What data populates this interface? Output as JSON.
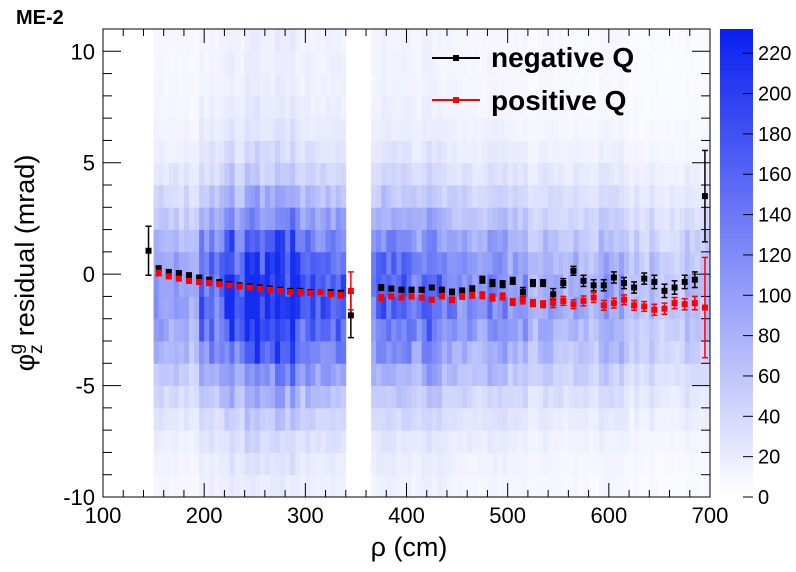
{
  "chart_data": {
    "type": "scatter",
    "title": "ME-2",
    "xlabel": "ρ (cm)",
    "ylabel_main": "φ",
    "ylabel_sup": "g",
    "ylabel_sub": "z",
    "ylabel_rest": " residual (mrad)",
    "xlim": [
      100,
      700
    ],
    "ylim": [
      -10,
      11
    ],
    "x_ticks": [
      100,
      200,
      300,
      400,
      500,
      600,
      700
    ],
    "x_tick_labels": [
      "100",
      "200",
      "300",
      "400",
      "500",
      "600",
      "700"
    ],
    "y_ticks": [
      -10,
      -5,
      0,
      5,
      10
    ],
    "y_tick_labels": [
      "-10",
      "-5",
      "0",
      "5",
      "10"
    ],
    "colorbar": {
      "range": [
        0,
        232
      ],
      "ticks": [
        0,
        20,
        40,
        60,
        80,
        100,
        120,
        140,
        160,
        180,
        200,
        220
      ],
      "tick_labels": [
        "0",
        "20",
        "40",
        "60",
        "80",
        "100",
        "120",
        "140",
        "160",
        "180",
        "200",
        "220"
      ]
    },
    "heatmap": {
      "description_free": true,
      "x_start": 150,
      "x_end": 700,
      "x_bin": 5,
      "y_start": -10,
      "y_end": 11,
      "y_bin": 1,
      "gap": [
        338,
        365
      ]
    },
    "legend": {
      "position": "top-right",
      "entries": [
        "negative Q",
        "positive Q"
      ]
    },
    "series": [
      {
        "name": "negative Q",
        "color": "#000000",
        "x": [
          145,
          155,
          165,
          175,
          185,
          195,
          205,
          215,
          225,
          235,
          245,
          255,
          265,
          275,
          285,
          295,
          305,
          315,
          325,
          335,
          345,
          375,
          385,
          395,
          405,
          415,
          425,
          435,
          445,
          455,
          465,
          475,
          485,
          495,
          505,
          515,
          525,
          535,
          545,
          555,
          565,
          575,
          585,
          595,
          605,
          615,
          625,
          635,
          645,
          655,
          665,
          675,
          685,
          695
        ],
        "y": [
          1.05,
          0.25,
          0.1,
          0.05,
          -0.05,
          -0.15,
          -0.25,
          -0.35,
          -0.45,
          -0.5,
          -0.55,
          -0.6,
          -0.65,
          -0.7,
          -0.75,
          -0.75,
          -0.8,
          -0.8,
          -0.8,
          -0.85,
          -1.85,
          -0.6,
          -0.65,
          -0.7,
          -0.7,
          -0.7,
          -0.6,
          -0.7,
          -0.8,
          -0.75,
          -0.65,
          -0.25,
          -0.4,
          -0.45,
          -0.3,
          -0.8,
          -0.4,
          -0.4,
          -0.9,
          -0.4,
          0.15,
          -0.3,
          -0.5,
          -0.5,
          -0.15,
          -0.4,
          -0.6,
          -0.2,
          -0.35,
          -0.75,
          -0.6,
          -0.35,
          -0.25,
          3.5
        ],
        "err": [
          1.1,
          0.12,
          0.1,
          0.1,
          0.1,
          0.1,
          0.1,
          0.08,
          0.08,
          0.08,
          0.08,
          0.08,
          0.08,
          0.08,
          0.08,
          0.08,
          0.08,
          0.08,
          0.1,
          0.12,
          1.0,
          0.12,
          0.1,
          0.1,
          0.1,
          0.1,
          0.1,
          0.1,
          0.12,
          0.12,
          0.12,
          0.15,
          0.15,
          0.15,
          0.15,
          0.2,
          0.15,
          0.15,
          0.25,
          0.2,
          0.2,
          0.25,
          0.25,
          0.25,
          0.25,
          0.25,
          0.25,
          0.25,
          0.3,
          0.3,
          0.3,
          0.3,
          0.35,
          2.05
        ]
      },
      {
        "name": "positive Q",
        "color": "#ff0000",
        "x": [
          155,
          165,
          175,
          185,
          195,
          205,
          215,
          225,
          235,
          245,
          255,
          265,
          275,
          285,
          295,
          305,
          315,
          325,
          335,
          345,
          375,
          385,
          395,
          405,
          415,
          425,
          435,
          445,
          455,
          465,
          475,
          485,
          495,
          505,
          515,
          525,
          535,
          545,
          555,
          565,
          575,
          585,
          595,
          605,
          615,
          625,
          635,
          645,
          655,
          665,
          675,
          685,
          695
        ],
        "y": [
          0.05,
          -0.1,
          -0.2,
          -0.3,
          -0.35,
          -0.4,
          -0.45,
          -0.5,
          -0.55,
          -0.6,
          -0.65,
          -0.7,
          -0.75,
          -0.8,
          -0.8,
          -0.85,
          -0.8,
          -0.9,
          -0.95,
          -0.75,
          -1.05,
          -1.0,
          -1.05,
          -1.0,
          -1.05,
          -1.15,
          -1.0,
          -1.15,
          -1.0,
          -0.95,
          -0.95,
          -1.05,
          -1.0,
          -1.25,
          -1.15,
          -1.3,
          -1.35,
          -1.3,
          -1.2,
          -1.35,
          -1.2,
          -1.05,
          -1.4,
          -1.3,
          -1.15,
          -1.4,
          -1.45,
          -1.6,
          -1.55,
          -1.3,
          -1.35,
          -1.3,
          -1.5
        ],
        "err": [
          0.12,
          0.1,
          0.1,
          0.1,
          0.1,
          0.1,
          0.08,
          0.08,
          0.08,
          0.08,
          0.08,
          0.08,
          0.08,
          0.08,
          0.08,
          0.08,
          0.08,
          0.1,
          0.12,
          0.85,
          0.12,
          0.1,
          0.1,
          0.1,
          0.1,
          0.1,
          0.1,
          0.12,
          0.12,
          0.12,
          0.15,
          0.15,
          0.15,
          0.15,
          0.18,
          0.15,
          0.15,
          0.2,
          0.2,
          0.2,
          0.22,
          0.22,
          0.22,
          0.22,
          0.22,
          0.22,
          0.22,
          0.25,
          0.25,
          0.25,
          0.25,
          0.3,
          2.25
        ]
      }
    ]
  }
}
